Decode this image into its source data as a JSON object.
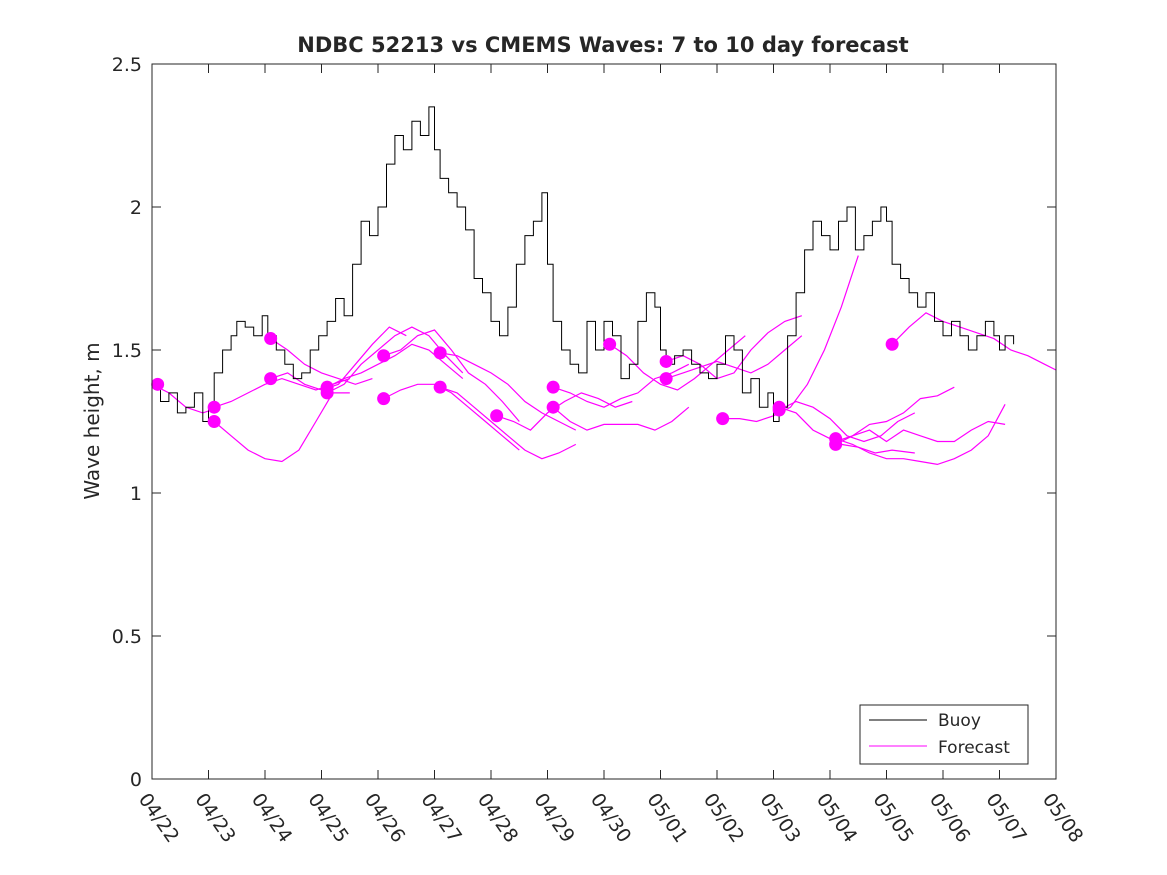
{
  "chart_data": {
    "type": "line",
    "title": "NDBC 52213 vs CMEMS Waves: 7 to 10 day forecast",
    "xlabel": "",
    "ylabel": "Wave height, m",
    "xlim": [
      0,
      16
    ],
    "ylim": [
      0,
      2.5
    ],
    "x_tick_labels": [
      "04/22",
      "04/23",
      "04/24",
      "04/25",
      "04/26",
      "04/27",
      "04/28",
      "04/29",
      "04/30",
      "05/01",
      "05/02",
      "05/03",
      "05/04",
      "05/05",
      "05/06",
      "05/07",
      "05/08"
    ],
    "y_ticks": [
      0,
      0.5,
      1,
      1.5,
      2,
      2.5
    ],
    "y_tick_labels": [
      "0",
      "0.5",
      "1",
      "1.5",
      "2",
      "2.5"
    ],
    "x_unit_note": "days since 04/22",
    "grid": false,
    "legend_position": "bottom-right",
    "colors": {
      "buoy": "#000000",
      "forecast": "#ff00ff",
      "axis": "#262626"
    },
    "legend": [
      {
        "label": "Buoy",
        "color": "#000000"
      },
      {
        "label": "Forecast",
        "color": "#ff00ff"
      }
    ],
    "series": [
      {
        "name": "Buoy",
        "color": "#000000",
        "x": [
          0.0,
          0.15,
          0.3,
          0.45,
          0.6,
          0.75,
          0.9,
          1.0,
          1.1,
          1.25,
          1.4,
          1.5,
          1.65,
          1.8,
          1.95,
          2.05,
          2.2,
          2.35,
          2.5,
          2.65,
          2.8,
          2.95,
          3.1,
          3.25,
          3.4,
          3.55,
          3.7,
          3.85,
          4.0,
          4.15,
          4.3,
          4.45,
          4.6,
          4.75,
          4.9,
          5.0,
          5.1,
          5.25,
          5.4,
          5.55,
          5.7,
          5.85,
          6.0,
          6.15,
          6.3,
          6.45,
          6.6,
          6.75,
          6.9,
          7.0,
          7.1,
          7.25,
          7.4,
          7.55,
          7.7,
          7.85,
          8.0,
          8.15,
          8.3,
          8.45,
          8.6,
          8.75,
          8.9,
          9.0,
          9.1,
          9.25,
          9.4,
          9.55,
          9.7,
          9.85,
          10.0,
          10.15,
          10.3,
          10.45,
          10.6,
          10.75,
          10.9,
          11.0,
          11.1,
          11.25,
          11.4,
          11.55,
          11.7,
          11.85,
          12.0,
          12.15,
          12.3,
          12.45,
          12.6,
          12.75,
          12.9,
          13.0,
          13.1,
          13.25,
          13.4,
          13.55,
          13.7,
          13.85,
          14.0,
          14.15,
          14.3,
          14.45,
          14.6,
          14.75,
          14.9,
          15.0,
          15.1,
          15.25
        ],
        "values": [
          1.38,
          1.32,
          1.35,
          1.28,
          1.3,
          1.35,
          1.25,
          1.3,
          1.42,
          1.5,
          1.55,
          1.6,
          1.58,
          1.55,
          1.62,
          1.55,
          1.5,
          1.45,
          1.4,
          1.42,
          1.5,
          1.55,
          1.6,
          1.68,
          1.62,
          1.8,
          1.95,
          1.9,
          2.0,
          2.15,
          2.25,
          2.2,
          2.3,
          2.25,
          2.35,
          2.2,
          2.1,
          2.05,
          2.0,
          1.92,
          1.75,
          1.7,
          1.6,
          1.55,
          1.65,
          1.8,
          1.9,
          1.95,
          2.05,
          1.8,
          1.6,
          1.5,
          1.45,
          1.42,
          1.6,
          1.5,
          1.6,
          1.55,
          1.4,
          1.45,
          1.6,
          1.7,
          1.65,
          1.5,
          1.45,
          1.48,
          1.5,
          1.45,
          1.42,
          1.4,
          1.45,
          1.55,
          1.5,
          1.35,
          1.4,
          1.3,
          1.35,
          1.25,
          1.3,
          1.55,
          1.7,
          1.85,
          1.95,
          1.9,
          1.85,
          1.95,
          2.0,
          1.85,
          1.9,
          1.95,
          2.0,
          1.95,
          1.8,
          1.75,
          1.7,
          1.65,
          1.7,
          1.6,
          1.55,
          1.6,
          1.55,
          1.5,
          1.55,
          1.6,
          1.55,
          1.5,
          1.55,
          1.52
        ]
      },
      {
        "name": "Forecast",
        "color": "#ff00ff",
        "segments": [
          {
            "x": [
              0.0,
              0.3,
              0.6,
              0.9,
              1.2
            ],
            "values": [
              1.38,
              1.35,
              1.3,
              1.28,
              1.3
            ]
          },
          {
            "x": [
              1.1,
              1.4,
              1.7,
              2.0,
              2.3,
              2.6,
              2.9,
              3.2,
              3.5
            ],
            "values": [
              1.25,
              1.2,
              1.15,
              1.12,
              1.11,
              1.15,
              1.25,
              1.35,
              1.35
            ]
          },
          {
            "x": [
              1.1,
              1.4,
              1.7,
              2.0,
              2.3,
              2.6,
              2.9,
              3.2,
              3.5
            ],
            "values": [
              1.3,
              1.32,
              1.35,
              1.38,
              1.4,
              1.38,
              1.36,
              1.38,
              1.4
            ]
          },
          {
            "x": [
              2.1,
              2.4,
              2.7,
              3.0,
              3.3,
              3.6,
              3.9
            ],
            "values": [
              1.54,
              1.5,
              1.45,
              1.42,
              1.4,
              1.38,
              1.4
            ]
          },
          {
            "x": [
              2.1,
              2.4,
              2.7,
              3.0,
              3.3,
              3.6,
              3.9,
              4.2,
              4.5
            ],
            "values": [
              1.4,
              1.42,
              1.38,
              1.36,
              1.38,
              1.45,
              1.52,
              1.58,
              1.55
            ]
          },
          {
            "x": [
              3.1,
              3.4,
              3.7,
              4.0,
              4.3,
              4.6,
              4.9,
              5.2,
              5.5
            ],
            "values": [
              1.35,
              1.38,
              1.45,
              1.5,
              1.55,
              1.58,
              1.55,
              1.48,
              1.42
            ]
          },
          {
            "x": [
              3.1,
              3.4,
              3.7,
              4.0,
              4.3,
              4.6,
              4.9,
              5.2,
              5.5
            ],
            "values": [
              1.37,
              1.4,
              1.42,
              1.45,
              1.48,
              1.52,
              1.5,
              1.45,
              1.4
            ]
          },
          {
            "x": [
              4.1,
              4.4,
              4.7,
              5.0,
              5.3,
              5.6,
              5.9,
              6.2,
              6.5
            ],
            "values": [
              1.48,
              1.5,
              1.55,
              1.57,
              1.5,
              1.42,
              1.38,
              1.32,
              1.25
            ]
          },
          {
            "x": [
              4.1,
              4.4,
              4.7,
              5.0,
              5.3,
              5.6,
              5.9,
              6.2,
              6.5
            ],
            "values": [
              1.33,
              1.36,
              1.38,
              1.38,
              1.35,
              1.3,
              1.25,
              1.2,
              1.15
            ]
          },
          {
            "x": [
              5.1,
              5.4,
              5.7,
              6.0,
              6.3,
              6.6,
              6.9,
              7.2,
              7.5
            ],
            "values": [
              1.49,
              1.48,
              1.45,
              1.42,
              1.38,
              1.32,
              1.28,
              1.25,
              1.22
            ]
          },
          {
            "x": [
              5.1,
              5.4,
              5.7,
              6.0,
              6.3,
              6.6,
              6.9,
              7.2,
              7.5
            ],
            "values": [
              1.37,
              1.35,
              1.3,
              1.25,
              1.2,
              1.15,
              1.12,
              1.14,
              1.17
            ]
          },
          {
            "x": [
              6.1,
              6.4,
              6.7,
              7.0,
              7.3,
              7.6,
              7.9,
              8.2,
              8.5
            ],
            "values": [
              1.27,
              1.25,
              1.22,
              1.28,
              1.32,
              1.35,
              1.33,
              1.3,
              1.32
            ]
          },
          {
            "x": [
              7.1,
              7.4,
              7.7,
              8.0,
              8.3,
              8.6,
              8.9,
              9.2,
              9.5
            ],
            "values": [
              1.37,
              1.35,
              1.32,
              1.3,
              1.33,
              1.35,
              1.4,
              1.42,
              1.45
            ]
          },
          {
            "x": [
              7.1,
              7.4,
              7.7,
              8.0,
              8.3,
              8.6,
              8.9,
              9.2,
              9.5
            ],
            "values": [
              1.3,
              1.25,
              1.22,
              1.24,
              1.24,
              1.24,
              1.22,
              1.25,
              1.3
            ]
          },
          {
            "x": [
              8.1,
              8.4,
              8.7,
              9.0,
              9.3,
              9.6,
              9.9,
              10.2,
              10.5
            ],
            "values": [
              1.52,
              1.48,
              1.42,
              1.38,
              1.36,
              1.4,
              1.45,
              1.5,
              1.55
            ]
          },
          {
            "x": [
              9.1,
              9.4,
              9.7,
              10.0,
              10.3,
              10.6,
              10.9,
              11.2,
              11.5
            ],
            "values": [
              1.46,
              1.48,
              1.45,
              1.4,
              1.42,
              1.5,
              1.56,
              1.6,
              1.62
            ]
          },
          {
            "x": [
              9.1,
              9.4,
              9.7,
              10.0,
              10.3,
              10.6,
              10.9,
              11.2,
              11.5
            ],
            "values": [
              1.4,
              1.42,
              1.44,
              1.46,
              1.44,
              1.42,
              1.45,
              1.5,
              1.55
            ]
          },
          {
            "x": [
              10.1,
              10.4,
              10.7,
              11.0,
              11.3,
              11.6,
              11.9,
              12.2,
              12.5
            ],
            "values": [
              1.26,
              1.26,
              1.25,
              1.27,
              1.3,
              1.38,
              1.5,
              1.65,
              1.83
            ]
          },
          {
            "x": [
              11.1,
              11.4,
              11.7,
              11.9,
              12.2,
              12.5,
              12.8,
              13.1,
              13.5
            ],
            "values": [
              1.3,
              1.28,
              1.22,
              1.2,
              1.17,
              1.16,
              1.14,
              1.15,
              1.14
            ]
          },
          {
            "x": [
              11.1,
              11.4,
              11.7,
              12.0,
              12.3,
              12.6,
              12.9,
              13.2,
              13.5
            ],
            "values": [
              1.29,
              1.32,
              1.3,
              1.26,
              1.2,
              1.18,
              1.2,
              1.25,
              1.28
            ]
          },
          {
            "x": [
              12.1,
              12.4,
              12.7,
              13.0,
              13.3,
              13.6,
              13.9,
              14.2,
              14.5,
              14.8,
              15.1
            ],
            "values": [
              1.19,
              1.17,
              1.14,
              1.12,
              1.12,
              1.11,
              1.1,
              1.12,
              1.15,
              1.2,
              1.31
            ]
          },
          {
            "x": [
              12.1,
              12.4,
              12.7,
              13.0,
              13.3,
              13.6,
              13.9,
              14.2,
              14.5,
              14.8,
              15.1
            ],
            "values": [
              1.18,
              1.2,
              1.22,
              1.18,
              1.22,
              1.2,
              1.18,
              1.18,
              1.22,
              1.25,
              1.24
            ]
          },
          {
            "x": [
              12.1,
              12.4,
              12.7,
              13.0,
              13.3,
              13.6,
              13.9,
              14.2
            ],
            "values": [
              1.17,
              1.2,
              1.24,
              1.25,
              1.28,
              1.33,
              1.34,
              1.37
            ]
          },
          {
            "x": [
              13.1,
              13.4,
              13.7,
              14.0,
              14.3,
              14.6,
              14.9,
              15.2,
              15.5,
              15.8,
              16.0
            ],
            "values": [
              1.52,
              1.58,
              1.63,
              1.6,
              1.58,
              1.56,
              1.54,
              1.5,
              1.48,
              1.45,
              1.43
            ]
          }
        ],
        "markers": {
          "x": [
            0.1,
            1.1,
            1.1,
            2.1,
            2.1,
            3.1,
            3.1,
            4.1,
            4.1,
            5.1,
            5.1,
            6.1,
            7.1,
            7.1,
            8.1,
            9.1,
            9.1,
            10.1,
            11.1,
            11.1,
            12.1,
            12.1,
            13.1
          ],
          "values": [
            1.38,
            1.3,
            1.25,
            1.54,
            1.4,
            1.37,
            1.35,
            1.48,
            1.33,
            1.49,
            1.37,
            1.27,
            1.37,
            1.3,
            1.52,
            1.46,
            1.4,
            1.26,
            1.3,
            1.29,
            1.19,
            1.17,
            1.52
          ]
        }
      }
    ]
  }
}
